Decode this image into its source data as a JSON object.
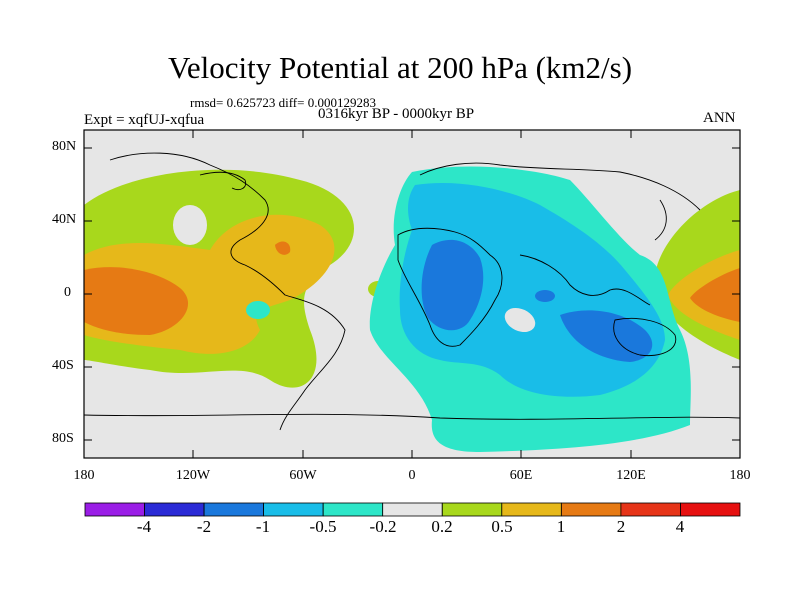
{
  "title": "Velocity Potential at 200 hPa (km2/s)",
  "stats_line": "rmsd= 0.625723  diff= 0.000129283",
  "experiment": "Expt = xqfUJ-xqfua",
  "period": "0316kyr BP - 0000kyr BP",
  "season": "ANN",
  "y_axis_ticks": [
    "80N",
    "40N",
    "0",
    "40S",
    "80S"
  ],
  "x_axis_ticks": [
    "180",
    "120W",
    "60W",
    "0",
    "60E",
    "120E",
    "180"
  ],
  "colorbar": {
    "tick_labels": [
      "-4",
      "-2",
      "-1",
      "-0.5",
      "-0.2",
      "0.2",
      "0.5",
      "1",
      "2",
      "4"
    ],
    "colors": [
      "#9a1de6",
      "#2b2bd6",
      "#1a78dc",
      "#19bde8",
      "#2de6c8",
      "#e6e6e6",
      "#a8d81c",
      "#e6b81a",
      "#e67a14",
      "#e63418",
      "#e61010"
    ]
  }
}
